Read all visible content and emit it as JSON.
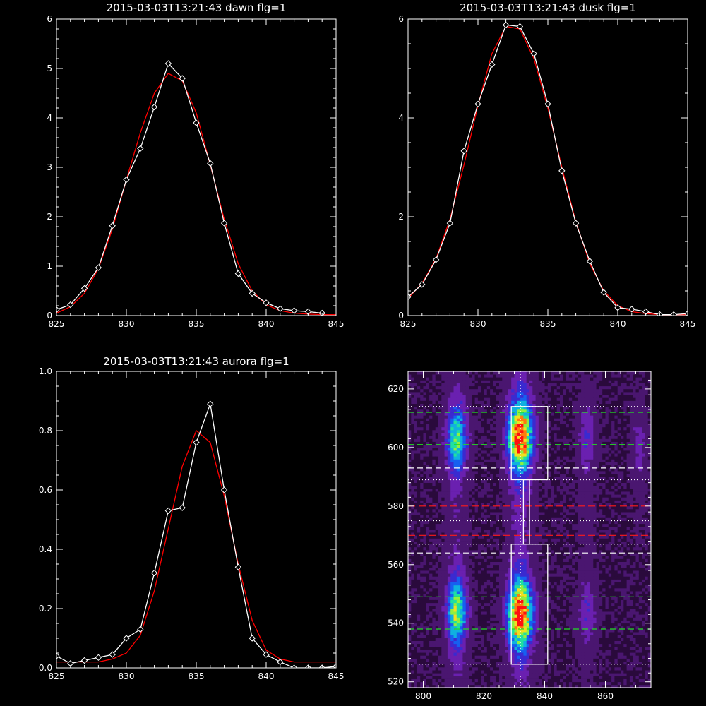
{
  "chart_data": [
    {
      "type": "line",
      "title": "2015-03-03T13:21:43 dawn flg=1",
      "xlim": [
        825,
        845
      ],
      "ylim": [
        0,
        6
      ],
      "xticks": [
        825,
        830,
        835,
        840,
        845
      ],
      "yticks": [
        0,
        1,
        2,
        3,
        4,
        5,
        6
      ],
      "tick_labels_x": [
        "825",
        "830",
        "835",
        "840",
        "845"
      ],
      "tick_labels_y": [
        "0",
        "1",
        "2",
        "3",
        "4",
        "5",
        "6"
      ],
      "series": [
        {
          "kind": "measured",
          "color": "#ffffff",
          "markers": "diamond",
          "x": [
            825,
            826,
            827,
            828,
            829,
            830,
            831,
            832,
            833,
            834,
            835,
            836,
            837,
            838,
            839,
            840,
            841,
            842,
            843,
            844
          ],
          "y": [
            0.12,
            0.22,
            0.55,
            0.97,
            1.82,
            2.75,
            3.38,
            4.22,
            5.1,
            4.8,
            3.9,
            3.08,
            1.87,
            0.85,
            0.45,
            0.26,
            0.14,
            0.1,
            0.08,
            0.05
          ]
        },
        {
          "kind": "fit",
          "color": "#ff0000",
          "x": [
            825,
            826,
            827,
            828,
            829,
            830,
            831,
            832,
            833,
            834,
            835,
            836,
            837,
            838,
            839,
            840,
            841,
            842,
            843,
            844,
            845
          ],
          "y": [
            0.05,
            0.18,
            0.45,
            0.95,
            1.75,
            2.75,
            3.7,
            4.5,
            4.9,
            4.75,
            4.1,
            3.05,
            1.95,
            1.05,
            0.5,
            0.22,
            0.1,
            0.05,
            0.03,
            0.02,
            0.02
          ]
        }
      ]
    },
    {
      "type": "line",
      "title": "2015-03-03T13:21:43 dusk flg=1",
      "xlim": [
        825,
        845
      ],
      "ylim": [
        0,
        6
      ],
      "xticks": [
        825,
        830,
        835,
        840,
        845
      ],
      "yticks": [
        0,
        2,
        4,
        6
      ],
      "tick_labels_x": [
        "825",
        "830",
        "835",
        "840",
        "845"
      ],
      "tick_labels_y": [
        "0",
        "2",
        "4",
        "6"
      ],
      "series": [
        {
          "kind": "measured",
          "color": "#ffffff",
          "markers": "diamond",
          "x": [
            825,
            826,
            827,
            828,
            829,
            830,
            831,
            832,
            833,
            834,
            835,
            836,
            837,
            838,
            839,
            840,
            841,
            842,
            843,
            844,
            845
          ],
          "y": [
            0.38,
            0.63,
            1.13,
            1.87,
            3.33,
            4.28,
            5.08,
            5.88,
            5.85,
            5.3,
            4.28,
            2.93,
            1.87,
            1.1,
            0.47,
            0.16,
            0.13,
            0.08,
            0.02,
            0.02,
            0.04
          ]
        },
        {
          "kind": "fit",
          "color": "#ff0000",
          "x": [
            825,
            826,
            827,
            828,
            829,
            830,
            831,
            832,
            833,
            834,
            835,
            836,
            837,
            838,
            839,
            840,
            841,
            842,
            843,
            844,
            845
          ],
          "y": [
            0.35,
            0.65,
            1.15,
            1.95,
            3.05,
            4.25,
            5.3,
            5.85,
            5.8,
            5.2,
            4.2,
            3.0,
            1.9,
            1.05,
            0.5,
            0.2,
            0.08,
            0.04,
            0.02,
            0.02,
            0.02
          ]
        }
      ]
    },
    {
      "type": "line",
      "title": "2015-03-03T13:21:43 aurora flg=1",
      "xlim": [
        825,
        845
      ],
      "ylim": [
        0,
        1
      ],
      "xticks": [
        825,
        830,
        835,
        840,
        845
      ],
      "yticks": [
        0,
        0.2,
        0.4,
        0.6,
        0.8,
        1.0
      ],
      "tick_labels_x": [
        "825",
        "830",
        "835",
        "840",
        "845"
      ],
      "tick_labels_y": [
        "0.0",
        "0.2",
        "0.4",
        "0.6",
        "0.8",
        "1.0"
      ],
      "series": [
        {
          "kind": "measured",
          "color": "#ffffff",
          "markers": "diamond",
          "x": [
            825,
            826,
            827,
            828,
            829,
            830,
            831,
            832,
            833,
            834,
            835,
            836,
            837,
            838,
            839,
            840,
            841,
            842,
            843,
            844,
            845
          ],
          "y": [
            0.04,
            0.015,
            0.025,
            0.035,
            0.045,
            0.1,
            0.13,
            0.32,
            0.53,
            0.54,
            0.76,
            0.89,
            0.6,
            0.34,
            0.1,
            0.045,
            0.02,
            0.0,
            0.0,
            0.0,
            0.005
          ]
        },
        {
          "kind": "fit",
          "color": "#ff0000",
          "x": [
            825,
            826,
            827,
            828,
            829,
            830,
            831,
            832,
            833,
            834,
            835,
            836,
            837,
            838,
            839,
            840,
            841,
            842,
            843,
            844,
            845
          ],
          "y": [
            0.02,
            0.02,
            0.02,
            0.02,
            0.03,
            0.05,
            0.11,
            0.26,
            0.47,
            0.68,
            0.8,
            0.76,
            0.58,
            0.35,
            0.16,
            0.06,
            0.03,
            0.02,
            0.02,
            0.02,
            0.02
          ]
        }
      ]
    },
    {
      "type": "heatmap",
      "title": "",
      "xlim": [
        795,
        875
      ],
      "ylim": [
        518,
        626
      ],
      "xticks": [
        800,
        820,
        840,
        860
      ],
      "yticks": [
        520,
        540,
        560,
        580,
        600,
        620
      ],
      "tick_labels_x": [
        "800",
        "820",
        "840",
        "860"
      ],
      "tick_labels_y": [
        "520",
        "540",
        "560",
        "580",
        "600",
        "620"
      ],
      "colormap": [
        "#2a0a3c",
        "#4a1670",
        "#6a20b0",
        "#3a2ad0",
        "#1660f0",
        "#10b0e0",
        "#20e0a0",
        "#90f040",
        "#f0e020",
        "#ff7a10",
        "#ff1010"
      ],
      "columns": [
        {
          "x": 811,
          "y_center": 603,
          "sigma_x": 2.3,
          "sigma_y": 4.5,
          "amp": 0.58
        },
        {
          "x": 811,
          "y_center": 544,
          "sigma_x": 2.3,
          "sigma_y": 4.5,
          "amp": 0.64
        },
        {
          "x": 832,
          "y_center": 604,
          "sigma_x": 2.8,
          "sigma_y": 4.5,
          "amp": 1.0
        },
        {
          "x": 832,
          "y_center": 543,
          "sigma_x": 2.8,
          "sigma_y": 4.5,
          "amp": 1.0
        },
        {
          "x": 854,
          "y_center": 603,
          "sigma_x": 2.0,
          "sigma_y": 4.5,
          "amp": 0.2
        },
        {
          "x": 854,
          "y_center": 544,
          "sigma_x": 2.0,
          "sigma_y": 4.5,
          "amp": 0.2
        },
        {
          "x": 871,
          "y_center": 600,
          "sigma_x": 1.7,
          "sigma_y": 4.5,
          "amp": 0.15
        }
      ],
      "guide_lines": {
        "green_dashed_y": [
          612,
          601,
          549,
          538
        ],
        "white_dashed_y": [
          593,
          564
        ],
        "red_dashed_y": [
          580,
          570
        ],
        "white_dotted_y": [
          614,
          589,
          575,
          567,
          526
        ],
        "white_dotted_x": [
          832
        ]
      },
      "boxes": [
        {
          "x0": 829,
          "x1": 841,
          "y0": 589,
          "y1": 614
        },
        {
          "x0": 829,
          "x1": 841,
          "y0": 526,
          "y1": 567
        },
        {
          "x0": 833,
          "x1": 835,
          "y0": 567,
          "y1": 589
        }
      ]
    }
  ]
}
